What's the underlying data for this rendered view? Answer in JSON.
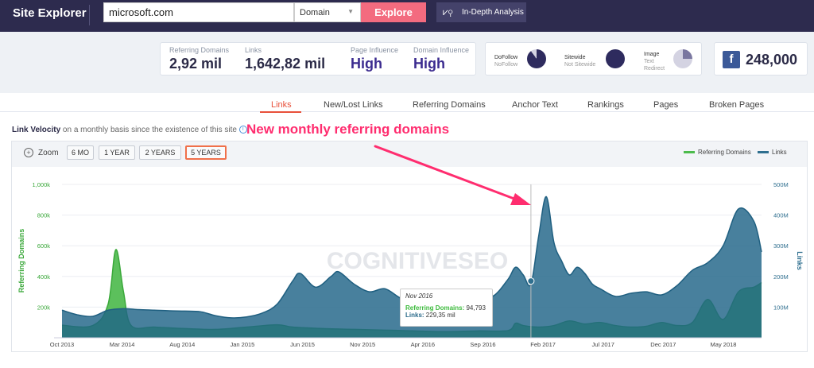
{
  "header": {
    "brand": "Site Explorer",
    "search_value": "microsoft.com",
    "select_value": "Domain",
    "explore": "Explore",
    "in_depth": "In-Depth Analysis"
  },
  "metrics": [
    {
      "label": "Referring Domains",
      "value": "2,92 mil"
    },
    {
      "label": "Links",
      "value": "1,642,82 mil"
    },
    {
      "label": "Page Influence",
      "value": "High"
    },
    {
      "label": "Domain Influence",
      "value": "High"
    }
  ],
  "link_types": [
    {
      "a": "DoFollow",
      "b": "NoFollow",
      "fraction": 0.9
    },
    {
      "a": "Sitewide",
      "b": "Not Sitewide",
      "fraction": 1.0
    },
    {
      "a": "Image",
      "b": "Text",
      "c": "Redirect",
      "fraction": 0.25
    }
  ],
  "facebook": {
    "icon": "facebook-icon",
    "value": "248,000"
  },
  "tabs": [
    "Links",
    "New/Lost Links",
    "Referring Domains",
    "Anchor Text",
    "Rankings",
    "Pages",
    "Broken Pages"
  ],
  "active_tab": "Links",
  "velocity": {
    "title": "Link Velocity",
    "subtitle": "on a monthly basis since the existence of this site"
  },
  "annotation": "New monthly referring domains",
  "zoom": {
    "label": "Zoom",
    "buttons": [
      "6 MO",
      "1 YEAR",
      "2 YEARS",
      "5 YEARS"
    ],
    "selected": "5 YEARS"
  },
  "watermark": "COGNITIVESEO",
  "colors": {
    "referring": "#4cbb4c",
    "links": "#2f6f8f",
    "accent": "#e8503a",
    "annot": "#ff2d6f"
  },
  "chart_data": {
    "type": "area",
    "x": [
      "Oct 2013",
      "Mar 2014",
      "Aug 2014",
      "Jan 2015",
      "Jun 2015",
      "Nov 2015",
      "Apr 2016",
      "Sep 2016",
      "Feb 2017",
      "Jul 2017",
      "Dec 2017",
      "May 2018"
    ],
    "ylabel": "Referring Domains",
    "y2label": "Links",
    "yticks": [
      "200k",
      "400k",
      "600k",
      "800k",
      "1,000k"
    ],
    "y2ticks": [
      "100M",
      "200M",
      "300M",
      "400M",
      "500M"
    ],
    "ylim": [
      0,
      1000000
    ],
    "y2lim": [
      0,
      500000000
    ],
    "legend": [
      "Referring Domains",
      "Links"
    ],
    "legend_position": "top-right",
    "series": [
      {
        "name": "Links",
        "axis": "right",
        "points": [
          [
            0,
            90
          ],
          [
            2,
            75
          ],
          [
            4,
            70
          ],
          [
            6,
            90
          ],
          [
            8,
            95
          ],
          [
            10,
            92
          ],
          [
            12,
            90
          ],
          [
            14,
            88
          ],
          [
            16,
            87
          ],
          [
            18,
            85
          ],
          [
            20,
            72
          ],
          [
            22,
            65
          ],
          [
            24,
            68
          ],
          [
            26,
            80
          ],
          [
            28,
            110
          ],
          [
            30,
            185
          ],
          [
            31,
            210
          ],
          [
            33,
            165
          ],
          [
            35,
            200
          ],
          [
            36,
            215
          ],
          [
            38,
            175
          ],
          [
            40,
            150
          ],
          [
            42,
            160
          ],
          [
            44,
            130
          ],
          [
            46,
            115
          ],
          [
            48,
            140
          ],
          [
            50,
            150
          ],
          [
            52,
            130
          ],
          [
            54,
            150
          ],
          [
            56,
            135
          ],
          [
            58,
            190
          ],
          [
            59,
            230
          ],
          [
            60,
            205
          ],
          [
            61,
            175
          ],
          [
            62,
            330
          ],
          [
            63,
            460
          ],
          [
            64,
            310
          ],
          [
            65,
            250
          ],
          [
            66,
            205
          ],
          [
            67,
            230
          ],
          [
            68,
            210
          ],
          [
            69,
            175
          ],
          [
            70,
            160
          ],
          [
            72,
            135
          ],
          [
            74,
            145
          ],
          [
            76,
            150
          ],
          [
            78,
            140
          ],
          [
            80,
            170
          ],
          [
            82,
            220
          ],
          [
            84,
            245
          ],
          [
            86,
            300
          ],
          [
            88,
            420
          ],
          [
            90,
            380
          ],
          [
            91,
            280
          ]
        ]
      },
      {
        "name": "Referring Domains",
        "axis": "left",
        "points": [
          [
            0,
            82000
          ],
          [
            4,
            80000
          ],
          [
            6,
            220000
          ],
          [
            7,
            575000
          ],
          [
            8,
            300000
          ],
          [
            9,
            80000
          ],
          [
            12,
            70000
          ],
          [
            16,
            60000
          ],
          [
            20,
            55000
          ],
          [
            24,
            70000
          ],
          [
            28,
            85000
          ],
          [
            30,
            70000
          ],
          [
            34,
            60000
          ],
          [
            38,
            55000
          ],
          [
            42,
            50000
          ],
          [
            46,
            45000
          ],
          [
            50,
            40000
          ],
          [
            54,
            45000
          ],
          [
            58,
            47000
          ],
          [
            59,
            94793
          ],
          [
            60,
            80000
          ],
          [
            62,
            70000
          ],
          [
            64,
            80000
          ],
          [
            66,
            110000
          ],
          [
            68,
            90000
          ],
          [
            70,
            100000
          ],
          [
            72,
            80000
          ],
          [
            74,
            70000
          ],
          [
            76,
            75000
          ],
          [
            78,
            100000
          ],
          [
            80,
            80000
          ],
          [
            82,
            100000
          ],
          [
            84,
            250000
          ],
          [
            86,
            120000
          ],
          [
            88,
            300000
          ],
          [
            90,
            330000
          ],
          [
            91,
            360000
          ]
        ]
      }
    ],
    "tooltip": {
      "date": "Nov 2016",
      "referring_label": "Referring Domains:",
      "referring_value": "94,793",
      "links_label": "Links:",
      "links_value": "229,35 mil"
    }
  }
}
